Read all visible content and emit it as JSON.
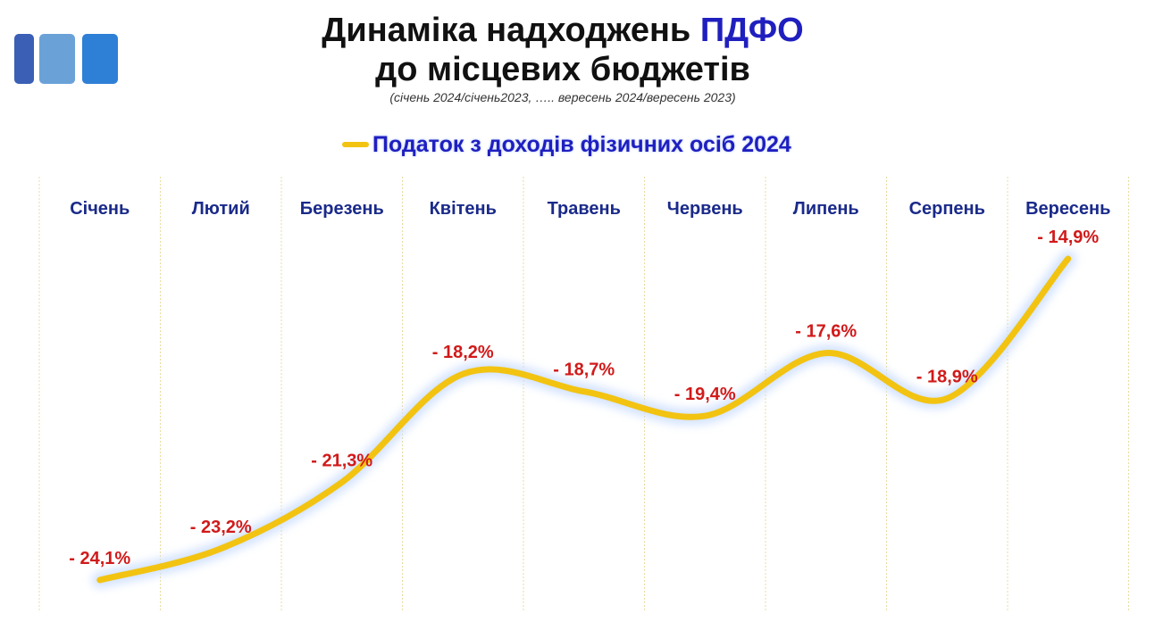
{
  "header": {
    "title_line1_prefix": "Динаміка надходжень",
    "title_line1_accent": "ПДФО",
    "title_line2": "до місцевих бюджетів",
    "subtitle": "(січень 2024/січень2023, ….. вересень 2024/вересень 2023)"
  },
  "colors": {
    "accent": "#1f1fbf",
    "line": "#f2c311",
    "labels": "#d11a1a",
    "months": "#1a2a8a",
    "logo": [
      "#3a5fb5",
      "#6aa2d8",
      "#2e7fd6"
    ]
  },
  "chart_data": {
    "type": "line",
    "legend": {
      "position": "top"
    },
    "categories": [
      "Січень",
      "Лютий",
      "Березень",
      "Квітень",
      "Травень",
      "Червень",
      "Липень",
      "Серпень",
      "Вересень"
    ],
    "series": [
      {
        "name": "Податок з доходів фізичних осіб 2024",
        "values": [
          -24.1,
          -23.2,
          -21.3,
          -18.2,
          -18.7,
          -19.4,
          -17.6,
          -18.9,
          -14.9
        ],
        "labels": [
          "- 24,1%",
          "- 23,2%",
          "- 21,3%",
          "- 18,2%",
          "- 18,7%",
          "- 19,4%",
          "- 17,6%",
          "- 18,9%",
          "- 14,9%"
        ]
      }
    ],
    "grid": true
  }
}
